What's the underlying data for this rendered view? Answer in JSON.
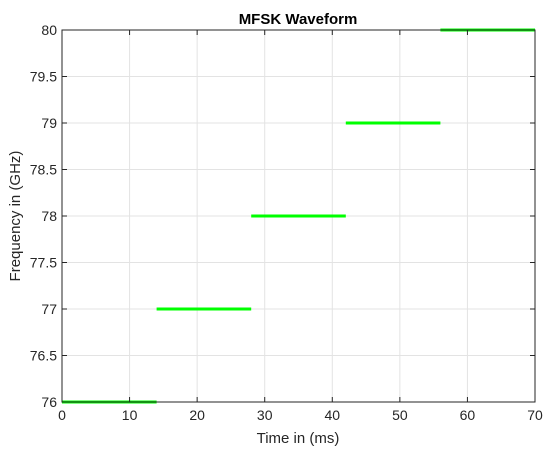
{
  "chart_data": {
    "type": "line",
    "title": "MFSK Waveform",
    "xlabel": "Time in (ms)",
    "ylabel": "Frequency in (GHz)",
    "xlim": [
      0,
      70
    ],
    "ylim": [
      76,
      80
    ],
    "xticks": [
      "0",
      "10",
      "20",
      "30",
      "40",
      "50",
      "60",
      "70"
    ],
    "yticks": [
      "76",
      "76.5",
      "77",
      "77.5",
      "78",
      "78.5",
      "79",
      "79.5",
      "80"
    ],
    "grid": true,
    "series": [
      {
        "color": "#00ff00",
        "segments": [
          {
            "x": [
              0,
              14
            ],
            "y": 76
          },
          {
            "x": [
              14,
              28
            ],
            "y": 77
          },
          {
            "x": [
              28,
              42
            ],
            "y": 78
          },
          {
            "x": [
              42,
              56
            ],
            "y": 79
          },
          {
            "x": [
              56,
              70
            ],
            "y": 80
          }
        ]
      }
    ]
  }
}
